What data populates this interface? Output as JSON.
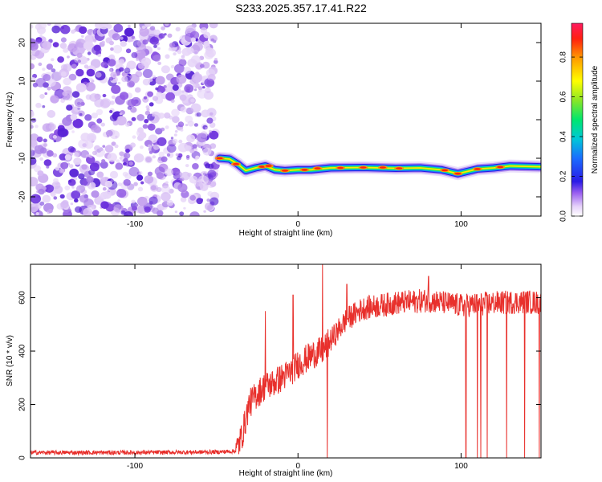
{
  "title": "S233.2025.357.17.41.R22",
  "chart_data": [
    {
      "type": "heatmap",
      "id": "spectrogram",
      "xlabel": "Height of straight line (km)",
      "ylabel": "Frequency (Hz)",
      "xlim": [
        -164,
        149
      ],
      "ylim": [
        -25,
        25
      ],
      "xticks": [
        -100,
        0,
        100
      ],
      "yticks": [
        -20,
        -10,
        0,
        10,
        20
      ],
      "noise_region_x": [
        -164,
        -50
      ],
      "ridge": [
        {
          "x": -48,
          "f": -10.0
        },
        {
          "x": -42,
          "f": -10.2
        },
        {
          "x": -37,
          "f": -11.5
        },
        {
          "x": -32,
          "f": -13.2
        },
        {
          "x": -26,
          "f": -12.5
        },
        {
          "x": -20,
          "f": -12.0
        },
        {
          "x": -14,
          "f": -13.0
        },
        {
          "x": -8,
          "f": -13.2
        },
        {
          "x": 0,
          "f": -13.0
        },
        {
          "x": 8,
          "f": -13.0
        },
        {
          "x": 20,
          "f": -12.5
        },
        {
          "x": 40,
          "f": -12.4
        },
        {
          "x": 60,
          "f": -12.6
        },
        {
          "x": 75,
          "f": -12.5
        },
        {
          "x": 88,
          "f": -13.0
        },
        {
          "x": 98,
          "f": -14.0
        },
        {
          "x": 110,
          "f": -12.8
        },
        {
          "x": 120,
          "f": -12.5
        },
        {
          "x": 130,
          "f": -12.0
        },
        {
          "x": 149,
          "f": -12.2
        }
      ],
      "colorbar": {
        "label": "Normalized spectral amplitude",
        "range": [
          0,
          0.97
        ],
        "ticks": [
          0.0,
          0.2,
          0.4,
          0.6,
          0.8
        ],
        "tick_labels": [
          "0.0",
          "0.2",
          "0.4",
          "0.6",
          "0.8"
        ]
      }
    },
    {
      "type": "line",
      "id": "snr",
      "xlabel": "Height of straight line (km)",
      "ylabel": "SNR (10 * v/v)",
      "xlim": [
        -164,
        149
      ],
      "ylim": [
        0,
        725
      ],
      "xticks": [
        -100,
        0,
        100
      ],
      "yticks": [
        0,
        200,
        400,
        600
      ],
      "color": "#e8302c",
      "series": [
        {
          "name": "SNR",
          "x": [
            -164,
            -100,
            -50,
            -38,
            -34,
            -30,
            -25,
            -20,
            -15,
            -10,
            -5,
            0,
            5,
            10,
            15,
            20,
            30,
            40,
            60,
            80,
            100,
            120,
            140,
            149
          ],
          "values": [
            20,
            20,
            22,
            25,
            90,
            200,
            240,
            270,
            280,
            300,
            320,
            350,
            370,
            390,
            400,
            440,
            520,
            560,
            580,
            590,
            570,
            580,
            585,
            580
          ]
        }
      ],
      "spikes_up": [
        {
          "x": -20,
          "v": 550
        },
        {
          "x": -3,
          "v": 610
        },
        {
          "x": 15,
          "v": 725
        },
        {
          "x": 30,
          "v": 650
        },
        {
          "x": 80,
          "v": 680
        }
      ],
      "dropouts_x": [
        18,
        103,
        110,
        112,
        116,
        128,
        139,
        148
      ]
    }
  ]
}
